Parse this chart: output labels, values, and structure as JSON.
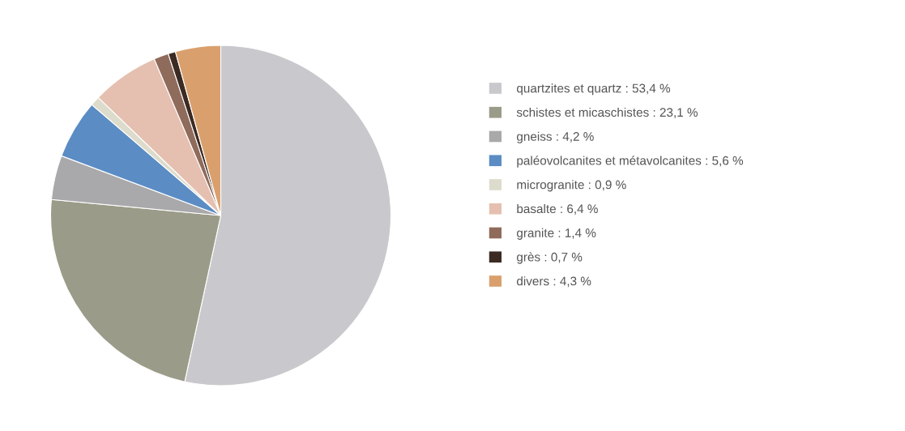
{
  "chart_data": {
    "type": "pie",
    "categories": [
      "quartzites et quartz : 53,4 %",
      "schistes et micaschistes : 23,1 %",
      "gneiss : 4,2 %",
      "paléovolcanites et métavolcanites : 5,6 %",
      "microgranite : 0,9 %",
      "basalte : 6,4 %",
      "granite : 1,4 %",
      "grès : 0,7 %",
      "divers : 4,3 %"
    ],
    "values": [
      53.4,
      23.1,
      4.2,
      5.6,
      0.9,
      6.4,
      1.4,
      0.7,
      4.3
    ],
    "colors": [
      "#c9c9cd",
      "#9b9b89",
      "#a9a9ab",
      "#5b8cc4",
      "#dddccc",
      "#e5c0b0",
      "#8f6b5b",
      "#3b2b23",
      "#d9a06e"
    ],
    "legend": "right"
  }
}
